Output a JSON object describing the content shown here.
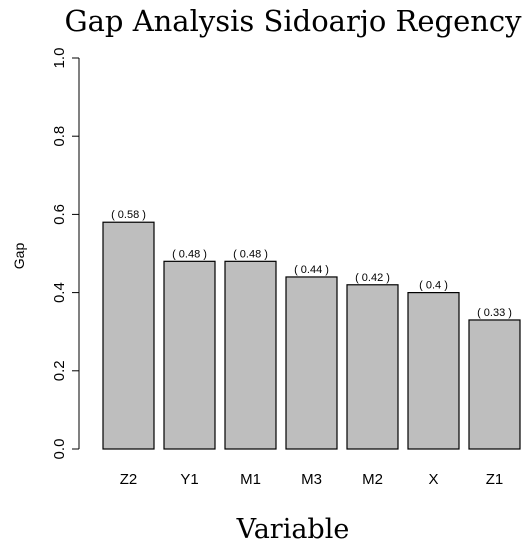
{
  "chart_data": {
    "type": "bar",
    "title": "Gap Analysis Sidoarjo Regency",
    "xlabel": "Variable",
    "ylabel": "Gap",
    "categories": [
      "Z2",
      "Y1",
      "M1",
      "M3",
      "M2",
      "X",
      "Z1"
    ],
    "values": [
      0.58,
      0.48,
      0.48,
      0.44,
      0.42,
      0.4,
      0.33
    ],
    "data_labels": [
      "( 0.58 )",
      "( 0.48 )",
      "( 0.48 )",
      "( 0.44 )",
      "( 0.42 )",
      "( 0.4 )",
      "( 0.33 )"
    ],
    "ylim": [
      0,
      1
    ],
    "yticks": [
      "0.0",
      "0.2",
      "0.4",
      "0.6",
      "0.8",
      "1.0"
    ],
    "ytick_values": [
      0,
      0.2,
      0.4,
      0.6,
      0.8,
      1.0
    ],
    "grid": false,
    "bar_color": "#bebebe",
    "bar_edge_color": "#000000"
  }
}
